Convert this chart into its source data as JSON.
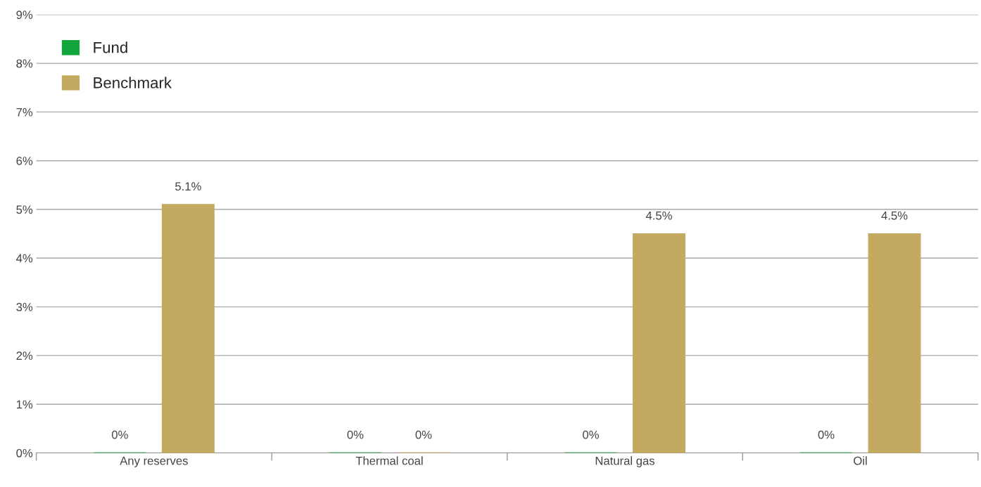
{
  "chart_data": {
    "type": "bar",
    "categories": [
      "Any reserves",
      "Thermal coal",
      "Natural gas",
      "Oil"
    ],
    "series": [
      {
        "name": "Fund",
        "color": "#12a53c",
        "values": [
          0,
          0,
          0,
          0
        ],
        "value_labels": [
          "0%",
          "0%",
          "0%",
          "0%"
        ]
      },
      {
        "name": "Benchmark",
        "color": "#c4aa61",
        "values": [
          5.1,
          0,
          4.5,
          4.5
        ],
        "value_labels": [
          "5.1%",
          "0%",
          "4.5%",
          "4.5%"
        ]
      }
    ],
    "ylim": [
      0,
      9
    ],
    "yticks": [
      {
        "value": 0,
        "label": "0%"
      },
      {
        "value": 1,
        "label": "1%"
      },
      {
        "value": 2,
        "label": "2%"
      },
      {
        "value": 3,
        "label": "3%"
      },
      {
        "value": 4,
        "label": "4%"
      },
      {
        "value": 5,
        "label": "5%"
      },
      {
        "value": 6,
        "label": "6%"
      },
      {
        "value": 7,
        "label": "7%"
      },
      {
        "value": 8,
        "label": "8%"
      },
      {
        "value": 9,
        "label": "9%"
      }
    ],
    "grid": "y",
    "legend": "top left"
  }
}
